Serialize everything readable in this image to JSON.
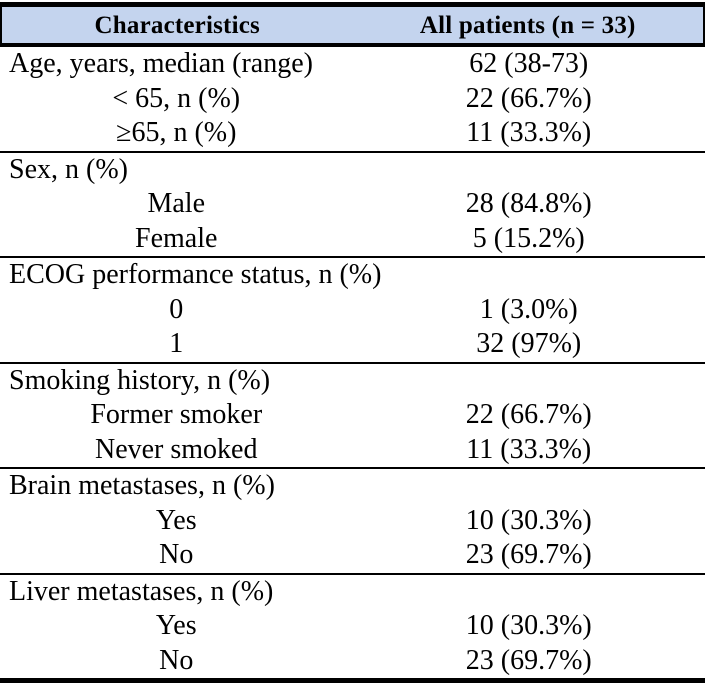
{
  "colors": {
    "header_bg": "#C4D4EE",
    "border": "#000000",
    "text": "#000000"
  },
  "table": {
    "header": {
      "characteristics": "Characteristics",
      "all_patients": "All patients (n = 33)"
    },
    "sections": [
      {
        "rows": [
          {
            "label": "Age, years, median (range)",
            "value": "62 (38-73)",
            "indent": "left"
          },
          {
            "label": "< 65, n (%)",
            "value": "22 (66.7%)",
            "indent": "center"
          },
          {
            "label": "≥65, n (%)",
            "value": "11 (33.3%)",
            "indent": "center"
          }
        ]
      },
      {
        "rows": [
          {
            "label": "Sex, n (%)",
            "value": "",
            "indent": "left"
          },
          {
            "label": "Male",
            "value": "28 (84.8%)",
            "indent": "center"
          },
          {
            "label": "Female",
            "value": "5 (15.2%)",
            "indent": "center"
          }
        ]
      },
      {
        "rows": [
          {
            "label": "ECOG performance status, n (%)",
            "value": "",
            "indent": "left"
          },
          {
            "label": "0",
            "value": "1 (3.0%)",
            "indent": "center"
          },
          {
            "label": "1",
            "value": "32 (97%)",
            "indent": "center"
          }
        ]
      },
      {
        "rows": [
          {
            "label": "Smoking history, n (%)",
            "value": "",
            "indent": "left"
          },
          {
            "label": "Former smoker",
            "value": "22 (66.7%)",
            "indent": "center"
          },
          {
            "label": "Never smoked",
            "value": "11 (33.3%)",
            "indent": "center"
          }
        ]
      },
      {
        "rows": [
          {
            "label": "Brain metastases, n (%)",
            "value": "",
            "indent": "left"
          },
          {
            "label": "Yes",
            "value": "10 (30.3%)",
            "indent": "center"
          },
          {
            "label": "No",
            "value": "23 (69.7%)",
            "indent": "center"
          }
        ]
      },
      {
        "rows": [
          {
            "label": "Liver metastases, n (%)",
            "value": "",
            "indent": "left"
          },
          {
            "label": "Yes",
            "value": "10 (30.3%)",
            "indent": "center"
          },
          {
            "label": "No",
            "value": "23 (69.7%)",
            "indent": "center"
          }
        ]
      }
    ]
  }
}
